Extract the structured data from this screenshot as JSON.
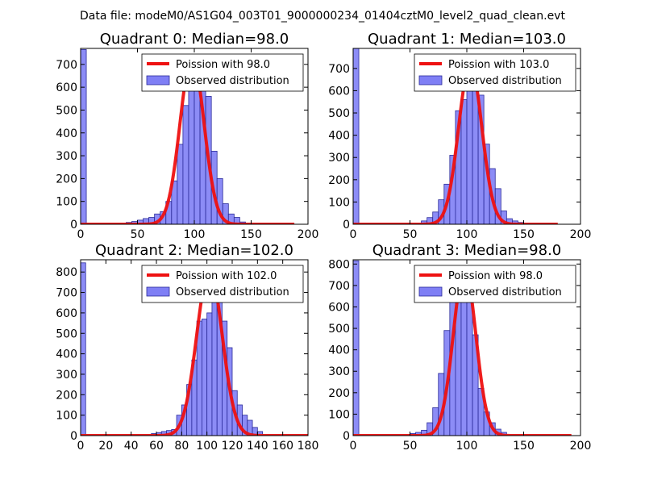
{
  "figure_title": "Data file: modeM0/AS1G04_003T01_9000000234_01404cztM0_level2_quad_clean.evt",
  "colors": {
    "bar_fill": "#7f7ff5",
    "bar_edge": "#2b2b9a",
    "model_line": "#ee1111"
  },
  "chart_data": [
    {
      "type": "bar",
      "title": "Quadrant 0: Median=98.0",
      "legend": [
        "Poission with 98.0",
        "Observed distribution"
      ],
      "legend_position": "top-right",
      "xlim": [
        0,
        200
      ],
      "ylim": [
        0,
        770
      ],
      "xticks": [
        0,
        50,
        100,
        150,
        200
      ],
      "yticks": [
        0,
        100,
        200,
        300,
        400,
        500,
        600,
        700
      ],
      "bin_width": 5,
      "bins": [
        0,
        40,
        45,
        50,
        55,
        60,
        65,
        70,
        75,
        80,
        85,
        90,
        95,
        100,
        105,
        110,
        115,
        120,
        125,
        130,
        135,
        140
      ],
      "values": [
        765,
        8,
        12,
        18,
        25,
        30,
        45,
        55,
        100,
        190,
        350,
        520,
        640,
        700,
        690,
        560,
        320,
        200,
        90,
        45,
        30,
        10
      ],
      "model": {
        "mean": 98.0,
        "peak": 735,
        "sigma": 10.5,
        "x_range": [
          0,
          188
        ]
      }
    },
    {
      "type": "bar",
      "title": "Quadrant 1: Median=103.0",
      "legend": [
        "Poission with 103.0",
        "Observed distribution"
      ],
      "legend_position": "top-right",
      "xlim": [
        0,
        200
      ],
      "ylim": [
        0,
        790
      ],
      "xticks": [
        0,
        50,
        100,
        150,
        200
      ],
      "yticks": [
        0,
        100,
        200,
        300,
        400,
        500,
        600,
        700
      ],
      "bin_width": 5,
      "bins": [
        0,
        60,
        65,
        70,
        75,
        80,
        85,
        90,
        95,
        100,
        105,
        110,
        115,
        120,
        125,
        130,
        135,
        140,
        145
      ],
      "values": [
        790,
        15,
        30,
        55,
        110,
        180,
        310,
        510,
        560,
        640,
        690,
        580,
        360,
        250,
        160,
        60,
        25,
        15,
        8
      ],
      "model": {
        "mean": 103.0,
        "peak": 720,
        "sigma": 10.2,
        "x_range": [
          0,
          180
        ]
      }
    },
    {
      "type": "bar",
      "title": "Quadrant 2: Median=102.0",
      "legend": [
        "Poission with 102.0",
        "Observed distribution"
      ],
      "legend_position": "top-right",
      "xlim": [
        0,
        180
      ],
      "ylim": [
        0,
        860
      ],
      "xticks": [
        0,
        20,
        40,
        60,
        80,
        100,
        120,
        140,
        160,
        180
      ],
      "yticks": [
        0,
        100,
        200,
        300,
        400,
        500,
        600,
        700,
        800
      ],
      "bin_width": 4,
      "bins": [
        0,
        56,
        60,
        64,
        68,
        72,
        76,
        80,
        84,
        88,
        92,
        96,
        100,
        104,
        108,
        112,
        116,
        120,
        124,
        128,
        132,
        136,
        140
      ],
      "values": [
        845,
        10,
        15,
        20,
        25,
        30,
        100,
        150,
        250,
        370,
        560,
        570,
        600,
        690,
        700,
        560,
        430,
        220,
        150,
        100,
        75,
        40,
        20
      ],
      "model": {
        "mean": 102.0,
        "peak": 810,
        "sigma": 10.1,
        "x_range": [
          0,
          180
        ]
      }
    },
    {
      "type": "bar",
      "title": "Quadrant 3: Median=98.0",
      "legend": [
        "Poission with 98.0",
        "Observed distribution"
      ],
      "legend_position": "top-right",
      "xlim": [
        0,
        200
      ],
      "ylim": [
        0,
        820
      ],
      "xticks": [
        0,
        50,
        100,
        150,
        200
      ],
      "yticks": [
        0,
        100,
        200,
        300,
        400,
        500,
        600,
        700,
        800
      ],
      "bin_width": 5,
      "bins": [
        0,
        50,
        55,
        60,
        65,
        70,
        75,
        80,
        85,
        90,
        95,
        100,
        105,
        110,
        115,
        120,
        125,
        130
      ],
      "values": [
        815,
        10,
        15,
        25,
        60,
        130,
        290,
        490,
        690,
        740,
        760,
        680,
        470,
        220,
        110,
        60,
        30,
        15
      ],
      "model": {
        "mean": 98.0,
        "peak": 780,
        "sigma": 9.9,
        "x_range": [
          0,
          192
        ]
      }
    }
  ]
}
